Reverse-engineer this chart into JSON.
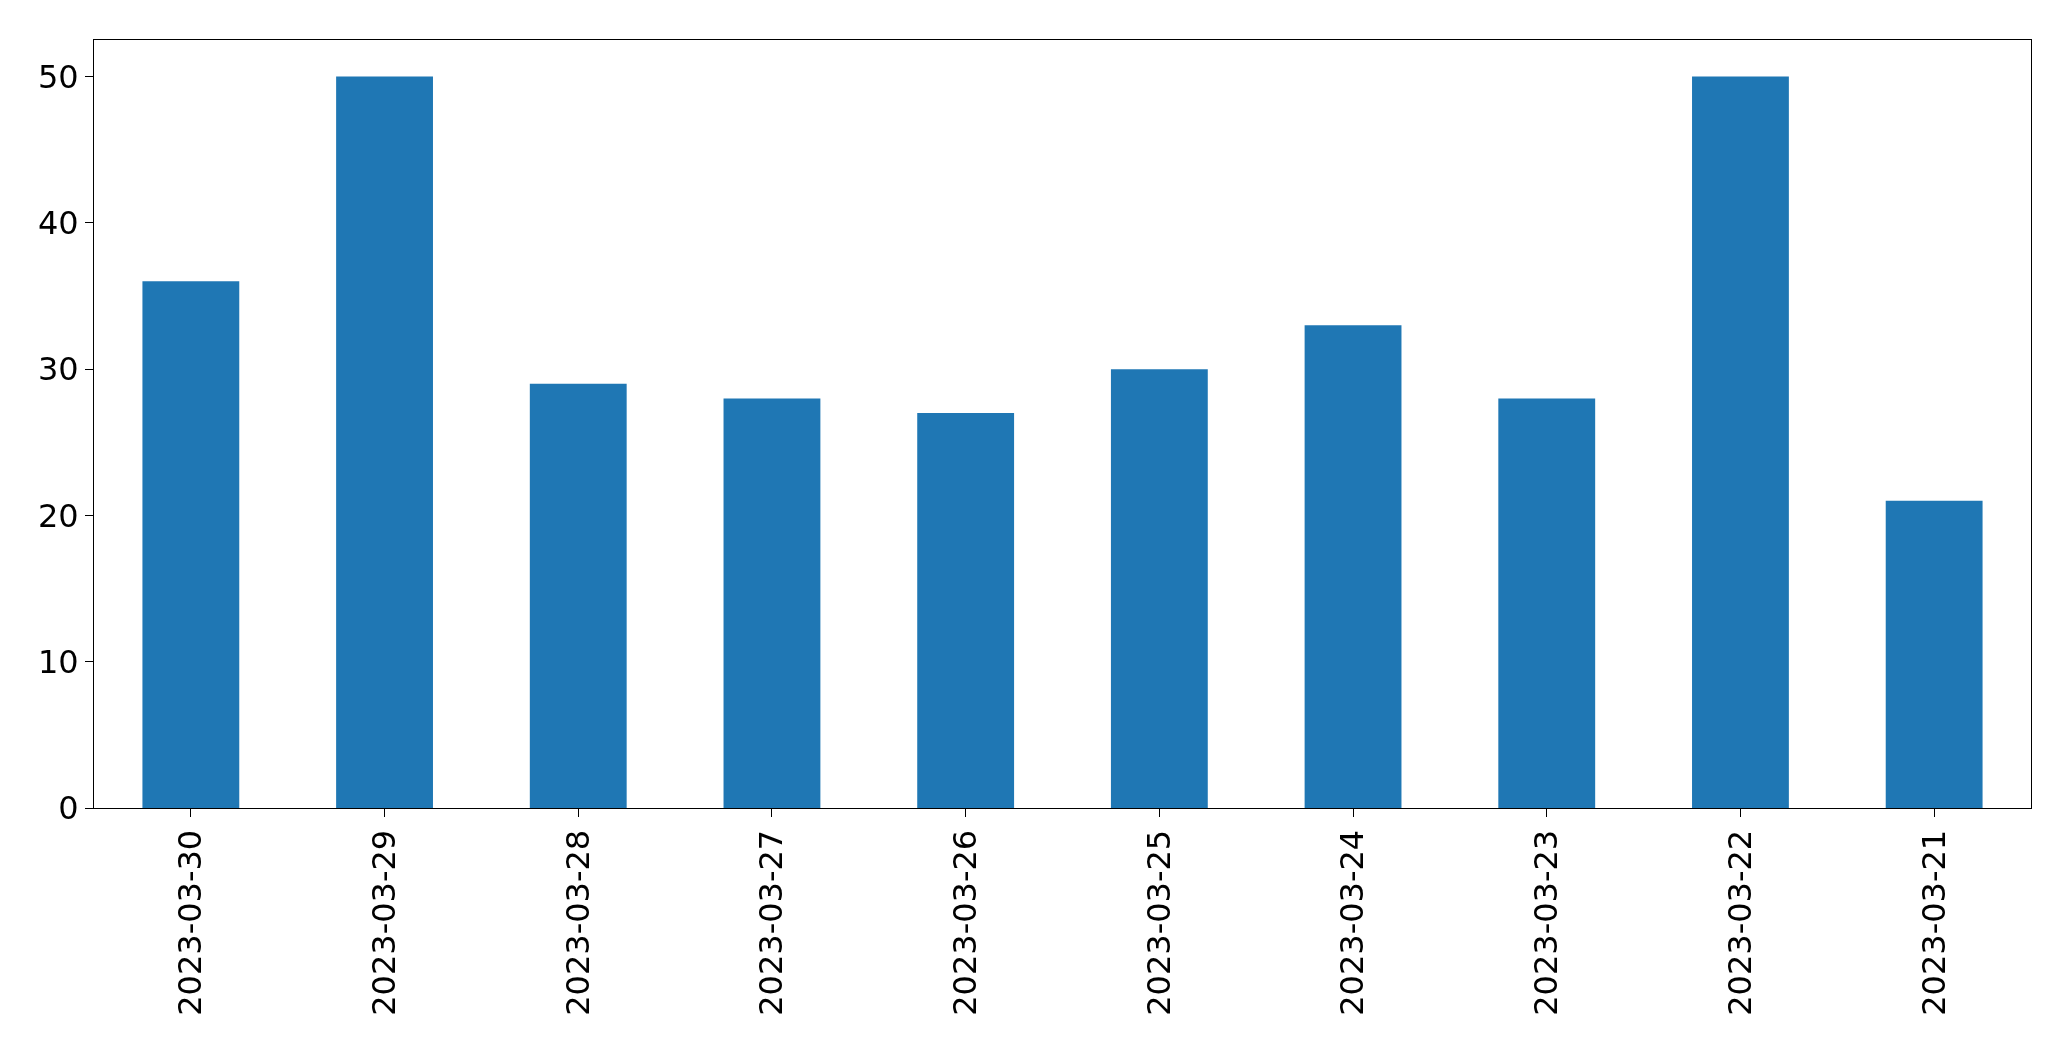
{
  "chart_data": {
    "type": "bar",
    "categories": [
      "2023-03-30",
      "2023-03-29",
      "2023-03-28",
      "2023-03-27",
      "2023-03-26",
      "2023-03-25",
      "2023-03-24",
      "2023-03-23",
      "2023-03-22",
      "2023-03-21"
    ],
    "values": [
      36,
      50,
      29,
      28,
      27,
      30,
      33,
      28,
      50,
      21
    ],
    "color": "#1f77b4",
    "ylim": [
      0,
      52.5
    ],
    "yticks": [
      0,
      10,
      20,
      30,
      40,
      50
    ]
  }
}
